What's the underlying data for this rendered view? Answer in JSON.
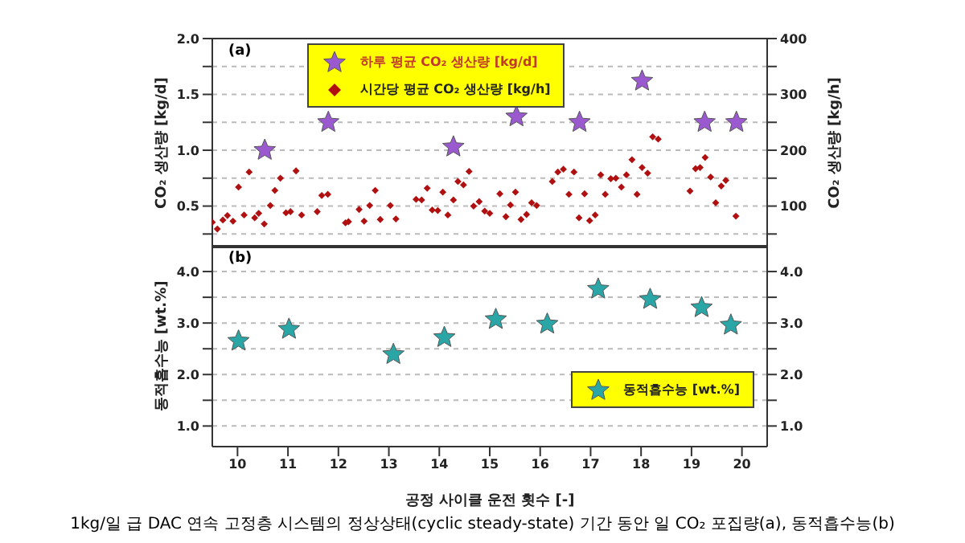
{
  "chart_data": [
    {
      "type": "scatter",
      "ylabel": "CO₂ 생산량 [kg/d]",
      "y2label": "CO₂ 생산량 [kg/h]",
      "annotations": [
        "(a)"
      ],
      "xlim": [
        9.5,
        20.5
      ],
      "xticks": [
        10,
        11,
        12,
        13,
        14,
        15,
        16,
        17,
        18,
        19,
        20
      ],
      "ylim": [
        0.13,
        2.0
      ],
      "yticks": [
        {
          "value": 0.25,
          "label": null
        },
        {
          "value": 0.5,
          "label": "0.5"
        },
        {
          "value": 0.75,
          "label": null
        },
        {
          "value": 1,
          "label": "1.0"
        },
        {
          "value": 1.25,
          "label": null
        },
        {
          "value": 1.5,
          "label": "1.5"
        },
        {
          "value": 1.75,
          "label": null
        },
        {
          "value": 2,
          "label": "2.0"
        }
      ],
      "y2lim": [
        26,
        400
      ],
      "y2ticks": [
        {
          "value": 50,
          "label": null
        },
        100,
        {
          "value": 150,
          "label": null
        },
        200,
        {
          "value": 250,
          "label": null
        },
        300,
        {
          "value": 350,
          "label": null
        },
        400
      ],
      "grid": "y",
      "legend": "top",
      "tick_labels": "y",
      "series": [
        {
          "name": "하루 평균 CO₂ 생산량 [kg/d]",
          "color": "#9b59d0",
          "marker": "star",
          "x": [
            10.54,
            11.8,
            14.28,
            15.53,
            16.78,
            18.02,
            19.26,
            19.89
          ],
          "values": [
            1.0,
            1.25,
            1.03,
            1.3,
            1.25,
            1.62,
            1.25,
            1.25
          ]
        },
        {
          "name": "시간당 평균 CO₂ 생산량 [kg/h]",
          "color": "#b01010",
          "marker": "diamond",
          "axis": "y2",
          "x": [
            9.5,
            9.6,
            9.71,
            9.8,
            9.91,
            10.02,
            10.13,
            10.23,
            10.34,
            10.42,
            10.53,
            10.65,
            10.74,
            10.85,
            10.96,
            11.05,
            11.16,
            11.27,
            11.58,
            11.67,
            11.79,
            12.14,
            12.2,
            12.41,
            12.51,
            12.62,
            12.73,
            12.83,
            13.03,
            13.14,
            13.54,
            13.65,
            13.76,
            13.86,
            13.97,
            14.07,
            14.17,
            14.28,
            14.37,
            14.48,
            14.59,
            14.68,
            14.79,
            14.9,
            15.0,
            15.2,
            15.32,
            15.41,
            15.51,
            15.62,
            15.73,
            15.83,
            15.93,
            16.24,
            16.35,
            16.46,
            16.57,
            16.67,
            16.77,
            16.88,
            16.98,
            17.09,
            17.2,
            17.29,
            17.4,
            17.5,
            17.61,
            17.71,
            17.82,
            17.92,
            18.02,
            18.13,
            18.23,
            18.34,
            18.97,
            19.08,
            19.17,
            19.27,
            19.38,
            19.48,
            19.59,
            19.68,
            19.88
          ],
          "values": [
            71,
            59,
            75,
            83,
            73,
            134,
            84,
            161,
            79,
            87,
            68,
            101,
            128,
            150,
            88,
            90,
            163,
            84,
            90,
            119,
            121,
            70,
            72,
            94,
            73,
            101,
            128,
            76,
            101,
            77,
            112,
            111,
            132,
            93,
            92,
            125,
            84,
            111,
            144,
            138,
            162,
            100,
            108,
            91,
            87,
            122,
            81,
            102,
            125,
            76,
            85,
            106,
            101,
            144,
            161,
            166,
            121,
            161,
            79,
            122,
            74,
            84,
            156,
            121,
            149,
            150,
            134,
            156,
            183,
            121,
            169,
            159,
            224,
            220,
            127,
            167,
            169,
            187,
            152,
            106,
            136,
            146,
            82
          ]
        }
      ]
    },
    {
      "type": "scatter",
      "ylabel": "동적흡수능 [wt.%]",
      "xlabel": "공정 사이클 운전 횟수 [-]",
      "annotations": [
        "(b)",
        "1kg/일 급 DAC 연속 고정층 시스템의 정상상태(cyclic steady-state) 기간 동안 일 CO₂ 포집량(a), 동적흡수능(b)"
      ],
      "xlim": [
        9.5,
        20.5
      ],
      "xticks": [
        10,
        11,
        12,
        13,
        14,
        15,
        16,
        17,
        18,
        19,
        20
      ],
      "ylim": [
        0.6,
        4.5
      ],
      "yticks": [
        {
          "value": 1,
          "label": "1.0"
        },
        {
          "value": 1.5,
          "label": null
        },
        {
          "value": 2,
          "label": "2.0"
        },
        {
          "value": 2.5,
          "label": null
        },
        {
          "value": 3,
          "label": "3.0"
        },
        {
          "value": 3.5,
          "label": null
        },
        {
          "value": 4,
          "label": "4.0"
        }
      ],
      "y2lim": [
        0.6,
        4.5
      ],
      "y2ticks": [
        {
          "value": 1,
          "label": "1.0"
        },
        {
          "value": 1.5,
          "label": null
        },
        {
          "value": 2,
          "label": "2.0"
        },
        {
          "value": 2.5,
          "label": null
        },
        {
          "value": 3,
          "label": "3.0"
        },
        {
          "value": 3.5,
          "label": null
        },
        {
          "value": 4,
          "label": "4.0"
        }
      ],
      "grid": "y",
      "legend": "bottom right",
      "series": [
        {
          "name": "동적흡수능 [wt.%]",
          "color": "#2aa6a6",
          "marker": "star",
          "x": [
            10.02,
            11.02,
            13.09,
            14.1,
            15.12,
            16.14,
            17.15,
            18.18,
            19.2,
            19.78
          ],
          "values": [
            2.65,
            2.88,
            2.39,
            2.72,
            3.07,
            2.98,
            3.66,
            3.46,
            3.3,
            2.96
          ]
        }
      ]
    }
  ]
}
